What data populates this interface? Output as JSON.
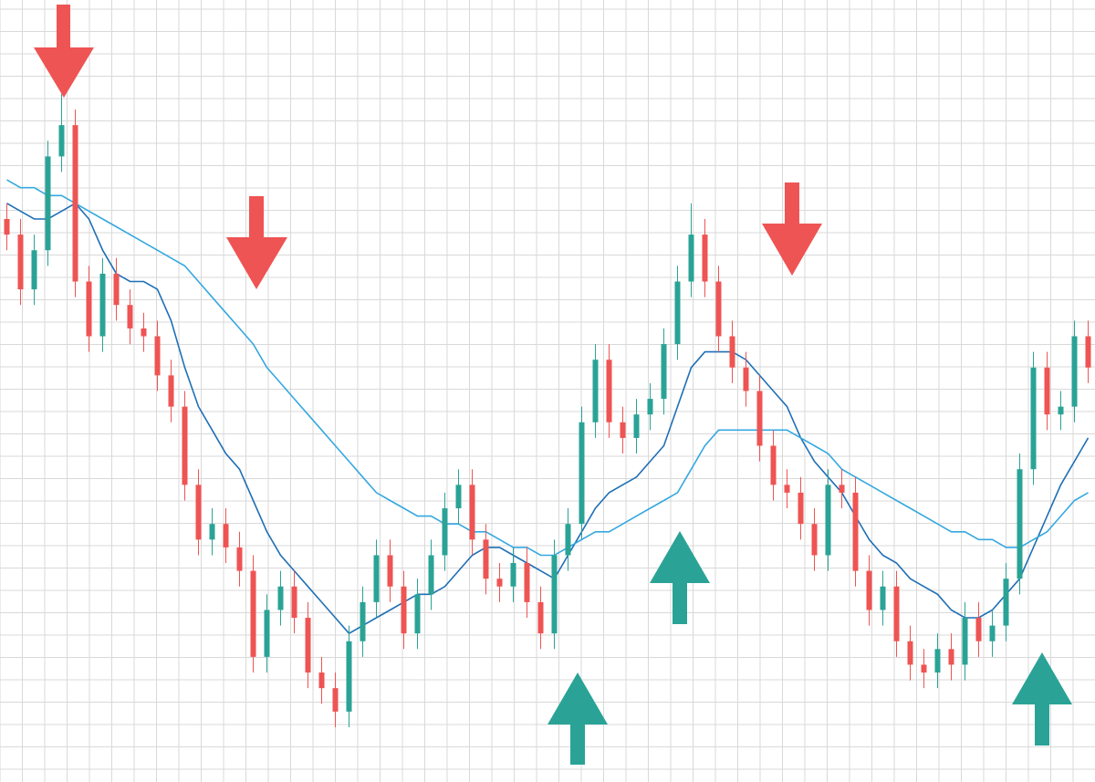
{
  "chart_data": {
    "type": "candlestick",
    "ylim": [
      0,
      100
    ],
    "grid": true,
    "up_color": "#2aa396",
    "down_color": "#ee5453",
    "open": [
      72,
      70,
      63,
      68,
      80,
      84,
      64,
      57,
      65,
      61,
      58,
      57,
      52,
      48,
      38,
      31,
      33,
      30,
      27,
      16,
      22,
      25,
      21,
      14,
      12,
      9,
      18,
      23,
      29,
      25,
      19,
      24,
      29,
      35,
      38,
      31,
      26,
      25,
      28,
      23,
      19,
      29,
      33,
      46,
      54,
      46,
      44,
      47,
      49,
      56,
      64,
      70,
      64,
      57,
      53,
      50,
      43,
      38,
      37,
      33,
      29,
      38,
      37,
      27,
      22,
      25,
      18,
      15,
      14,
      17,
      15,
      21,
      18,
      20,
      26,
      40,
      53,
      47,
      48,
      57
    ],
    "high": [
      74,
      72,
      70,
      82,
      88,
      86,
      66,
      67,
      67,
      63,
      60,
      59,
      54,
      50,
      40,
      35,
      35,
      32,
      29,
      24,
      27,
      27,
      23,
      16,
      14,
      20,
      25,
      31,
      31,
      27,
      26,
      31,
      37,
      40,
      40,
      33,
      28,
      30,
      30,
      25,
      31,
      35,
      48,
      56,
      56,
      48,
      49,
      51,
      58,
      66,
      74,
      72,
      66,
      59,
      55,
      52,
      45,
      40,
      39,
      35,
      40,
      40,
      39,
      29,
      27,
      27,
      20,
      17,
      19,
      19,
      23,
      23,
      22,
      28,
      42,
      55,
      55,
      50,
      59,
      59
    ],
    "low": [
      68,
      61,
      61,
      66,
      78,
      62,
      55,
      55,
      59,
      56,
      55,
      50,
      46,
      36,
      29,
      29,
      28,
      25,
      14,
      14,
      20,
      19,
      12,
      10,
      7,
      7,
      16,
      21,
      23,
      17,
      17,
      22,
      27,
      33,
      29,
      24,
      23,
      23,
      21,
      17,
      17,
      27,
      31,
      44,
      44,
      42,
      42,
      45,
      47,
      54,
      62,
      62,
      55,
      51,
      48,
      41,
      36,
      35,
      31,
      27,
      27,
      35,
      25,
      20,
      20,
      16,
      13,
      12,
      12,
      13,
      13,
      16,
      16,
      18,
      24,
      38,
      45,
      45,
      46,
      51
    ],
    "close": [
      70,
      63,
      68,
      80,
      84,
      64,
      57,
      65,
      61,
      58,
      57,
      52,
      48,
      38,
      31,
      33,
      30,
      27,
      16,
      22,
      25,
      21,
      14,
      12,
      9,
      18,
      23,
      29,
      25,
      19,
      24,
      29,
      35,
      38,
      31,
      26,
      25,
      28,
      23,
      19,
      29,
      33,
      46,
      54,
      46,
      44,
      47,
      49,
      56,
      64,
      70,
      64,
      57,
      53,
      50,
      43,
      38,
      37,
      33,
      29,
      38,
      37,
      27,
      22,
      25,
      18,
      15,
      14,
      17,
      15,
      21,
      18,
      20,
      26,
      40,
      53,
      47,
      48,
      57,
      53
    ],
    "series": [
      {
        "color": "#1f6fb5",
        "values": [
          74,
          73,
          72,
          72,
          73,
          74,
          72,
          68,
          65,
          64,
          64,
          63,
          59,
          53,
          48,
          45,
          42,
          40,
          36,
          32,
          29,
          27,
          25,
          23,
          21,
          19,
          20,
          21,
          22,
          23,
          24,
          24,
          25,
          27,
          29,
          30,
          30,
          29,
          28,
          27,
          26,
          29,
          32,
          35,
          37,
          38,
          39,
          41,
          43,
          48,
          53,
          55,
          55,
          55,
          54,
          52,
          50,
          48,
          44,
          41,
          39,
          37,
          34,
          31,
          29,
          28,
          26,
          25,
          24,
          22,
          21,
          21,
          22,
          24,
          26,
          30,
          34,
          38,
          41,
          44
        ]
      },
      {
        "color": "#35a8e0",
        "values": [
          77,
          76,
          76,
          75,
          75,
          74,
          73,
          72,
          71,
          70,
          69,
          68,
          67,
          66,
          64,
          62,
          60,
          58,
          56,
          53,
          51,
          49,
          47,
          45,
          43,
          41,
          39,
          37,
          36,
          35,
          34,
          34,
          33,
          33,
          32,
          32,
          31,
          30,
          30,
          29,
          29,
          30,
          31,
          32,
          32,
          33,
          34,
          35,
          36,
          37,
          40,
          43,
          45,
          45,
          45,
          45,
          45,
          45,
          44,
          43,
          42,
          40,
          39,
          38,
          37,
          36,
          35,
          34,
          33,
          32,
          32,
          31,
          31,
          30,
          30,
          31,
          32,
          34,
          36,
          37
        ]
      }
    ]
  }
}
